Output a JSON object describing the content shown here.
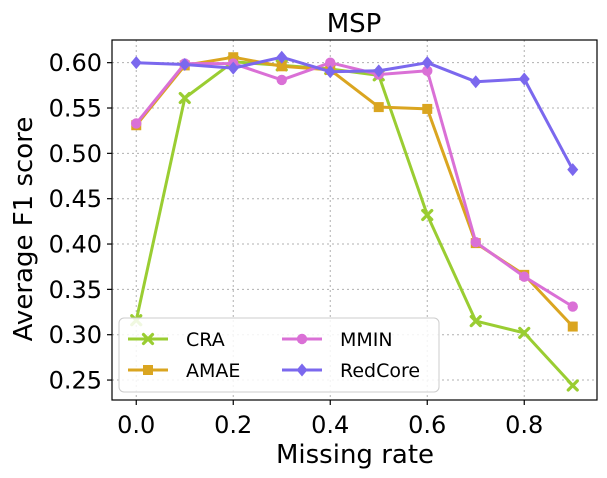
{
  "chart_data": {
    "type": "line",
    "title": "MSP",
    "xlabel": "Missing rate",
    "ylabel": "Average F1 score",
    "x": [
      0.0,
      0.1,
      0.2,
      0.3,
      0.4,
      0.5,
      0.6,
      0.7,
      0.8,
      0.9
    ],
    "xlim": [
      -0.05,
      0.95
    ],
    "ylim": [
      0.228,
      0.625
    ],
    "xticks": [
      0.0,
      0.2,
      0.4,
      0.6,
      0.8
    ],
    "xtick_labels": [
      "0.0",
      "0.2",
      "0.4",
      "0.6",
      "0.8"
    ],
    "yticks": [
      0.25,
      0.3,
      0.35,
      0.4,
      0.45,
      0.5,
      0.55,
      0.6
    ],
    "ytick_labels": [
      "0.25",
      "0.30",
      "0.35",
      "0.40",
      "0.45",
      "0.50",
      "0.55",
      "0.60"
    ],
    "grid": true,
    "legend_position": "bottom-left",
    "series": [
      {
        "name": "CRA",
        "color": "#9acd32",
        "marker": "x",
        "values": [
          0.316,
          0.561,
          0.601,
          0.597,
          0.593,
          0.586,
          0.432,
          0.315,
          0.302,
          0.244
        ]
      },
      {
        "name": "AMAE",
        "color": "#daa520",
        "marker": "square",
        "values": [
          0.531,
          0.597,
          0.606,
          0.596,
          0.592,
          0.551,
          0.549,
          0.401,
          0.366,
          0.309
        ]
      },
      {
        "name": "MMIN",
        "color": "#da70d6",
        "marker": "circle",
        "values": [
          0.533,
          0.599,
          0.599,
          0.581,
          0.6,
          0.587,
          0.591,
          0.402,
          0.364,
          0.331
        ]
      },
      {
        "name": "RedCore",
        "color": "#7b68ee",
        "marker": "diamond",
        "values": [
          0.6,
          0.598,
          0.594,
          0.606,
          0.59,
          0.591,
          0.6,
          0.579,
          0.582,
          0.482
        ]
      }
    ]
  }
}
